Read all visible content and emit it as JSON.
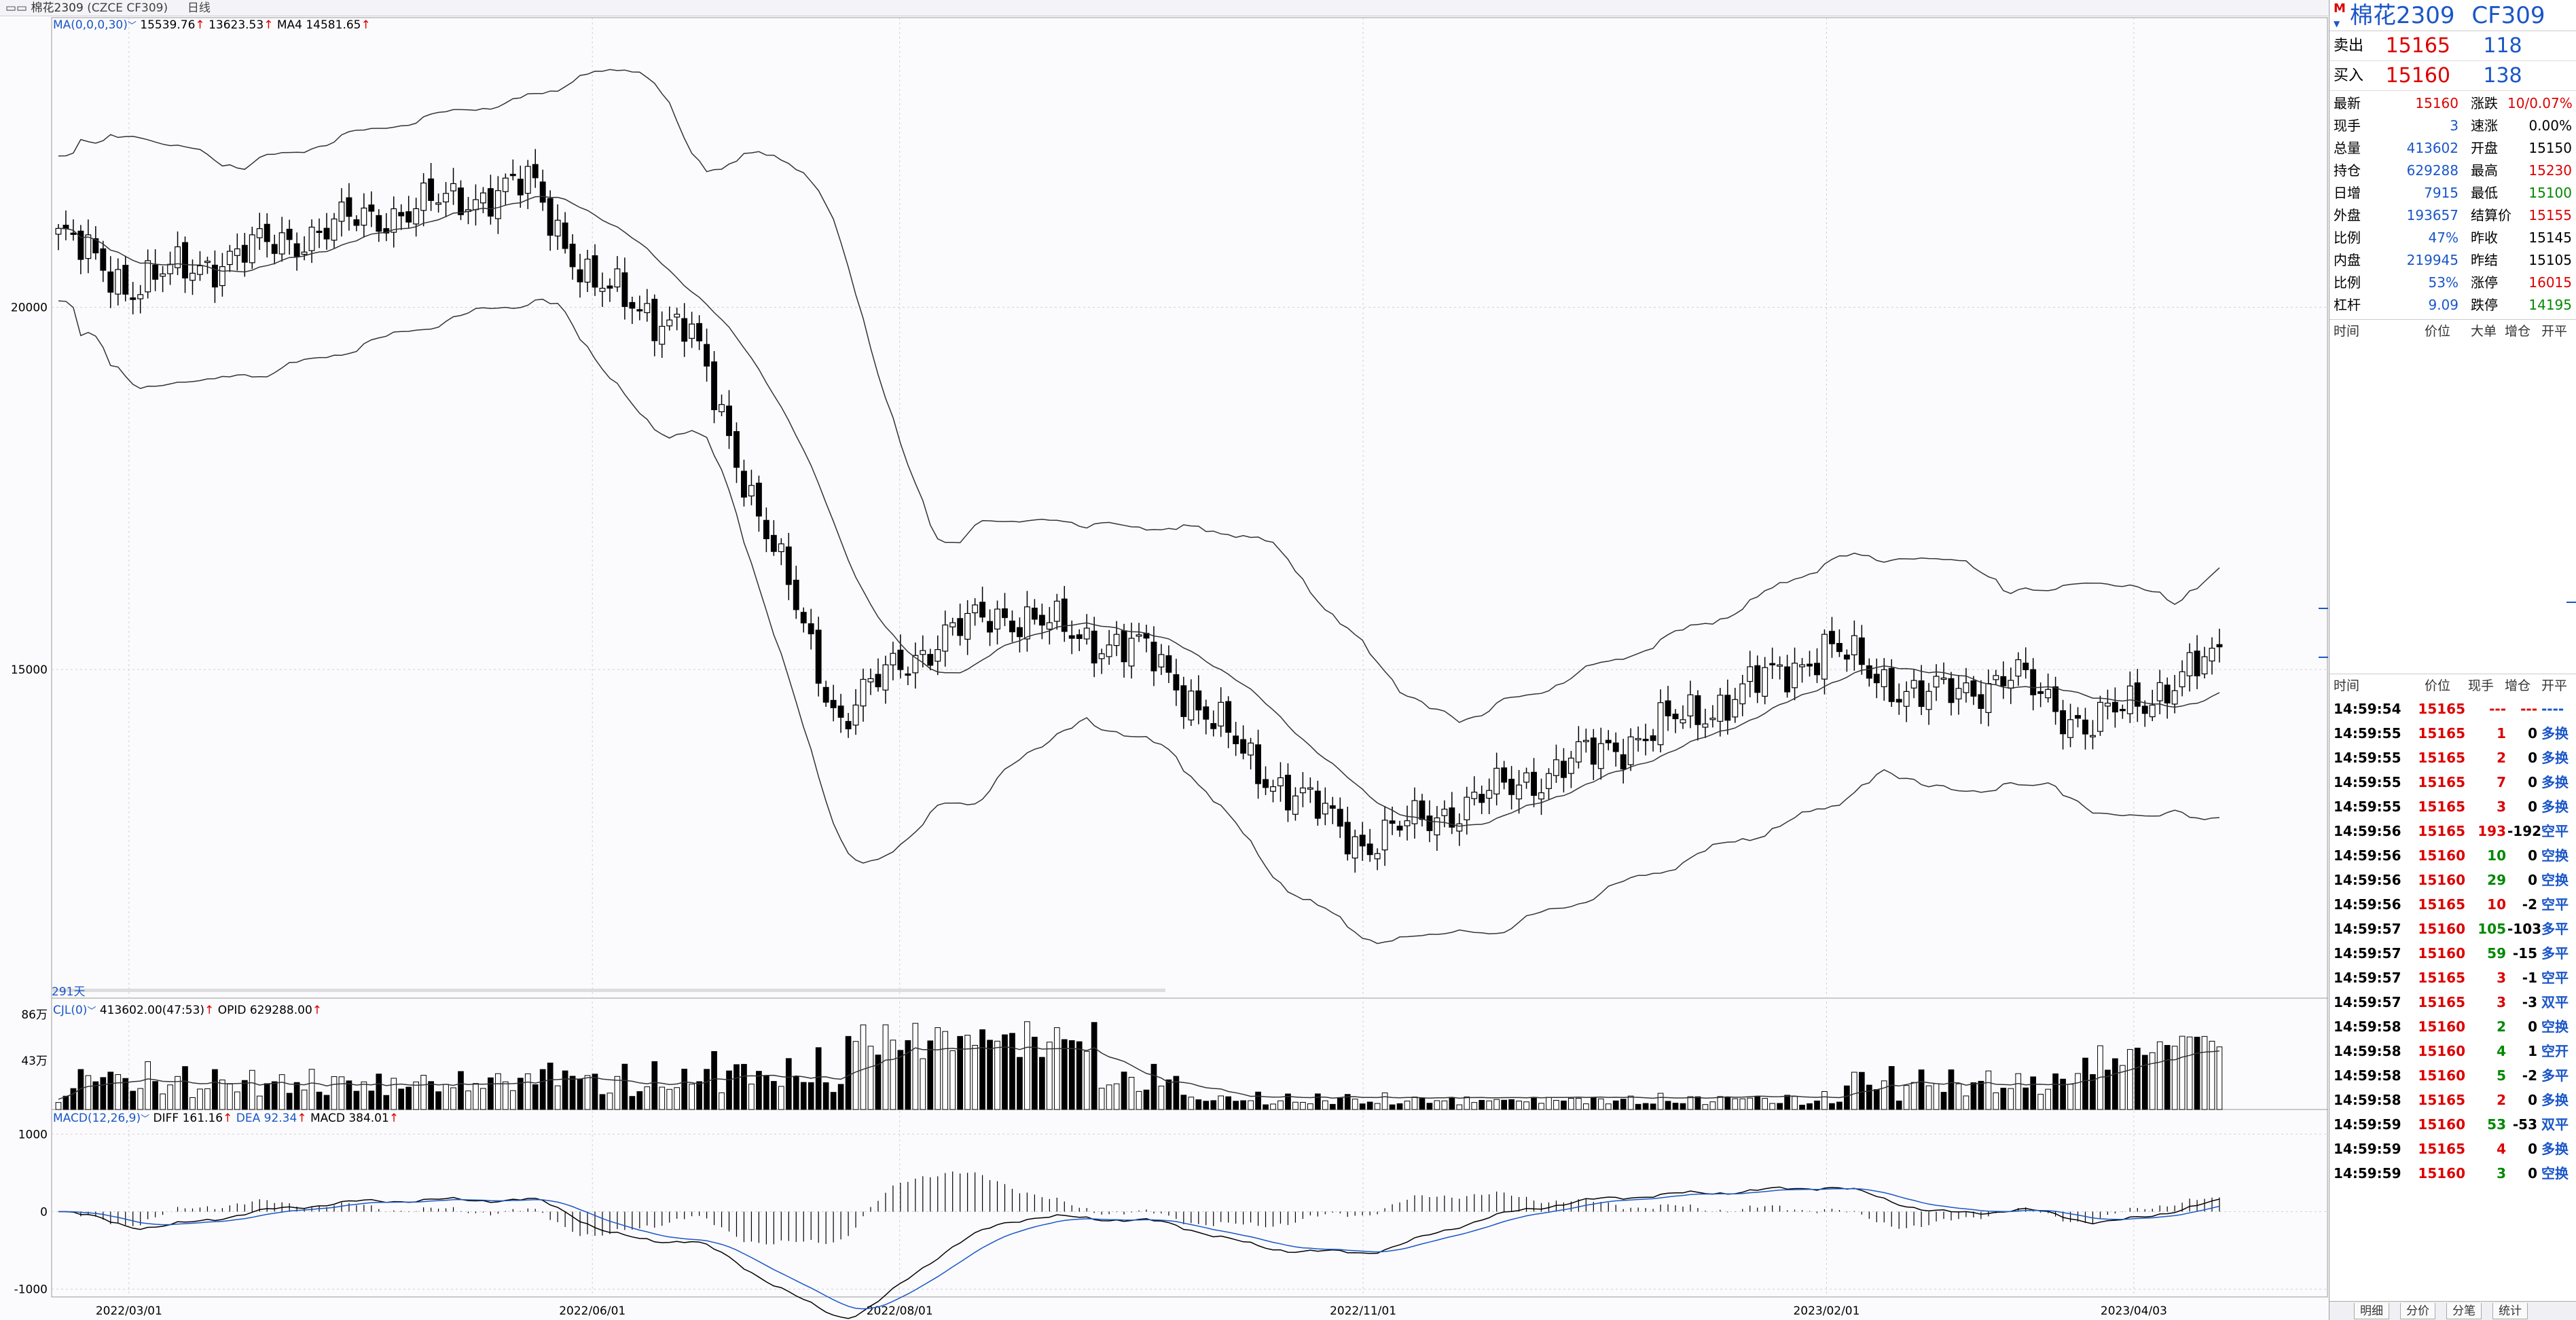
{
  "titlebar": {
    "symbol": "棉花2309",
    "code": "(CZCE CF309)",
    "period": "日线"
  },
  "main_legend": {
    "indicator": "MA(0,0,0,30)",
    "v1": "15539.76",
    "v2": "13623.53",
    "ma4": "MA4 14581.65",
    "days": "291天"
  },
  "volume_legend": {
    "indicator": "CJL(0)",
    "vol": "413602.00(47:53)",
    "opid": "OPID 629288.00",
    "ytick_top": "86万",
    "ytick_mid": "43万"
  },
  "macd_legend": {
    "indicator": "MACD(12,26,9)",
    "diff": "DIFF 161.16",
    "dea": "DEA 92.34",
    "macd": "MACD 384.01",
    "yticks": [
      "1000",
      "0",
      "-1000"
    ]
  },
  "price_yticks": [
    "20000",
    "15000"
  ],
  "dates": [
    "2022/03/01",
    "2022/06/01",
    "2022/08/01",
    "2022/11/01",
    "2023/02/01",
    "2023/04/03"
  ],
  "chart_data": {
    "type": "candlestick",
    "title": "棉花2309 (CZCE CF309) 日线",
    "price_range": [
      10500,
      24000
    ],
    "macd_range": [
      -1100,
      1300
    ],
    "x": [
      "2022/03/01",
      "2022/06/01",
      "2022/08/01",
      "2022/11/01",
      "2023/02/01",
      "2023/04/03"
    ],
    "close_keypoints": [
      {
        "date": "2022/02/15",
        "close": 21000
      },
      {
        "date": "2022/03/01",
        "close": 20300
      },
      {
        "date": "2022/04/15",
        "close": 21200
      },
      {
        "date": "2022/05/20",
        "close": 21700
      },
      {
        "date": "2022/06/01",
        "close": 20300
      },
      {
        "date": "2022/06/20",
        "close": 19700
      },
      {
        "date": "2022/07/05",
        "close": 17000
      },
      {
        "date": "2022/07/20",
        "close": 14300
      },
      {
        "date": "2022/08/01",
        "close": 15100
      },
      {
        "date": "2022/08/20",
        "close": 15800
      },
      {
        "date": "2022/09/20",
        "close": 15200
      },
      {
        "date": "2022/10/10",
        "close": 13700
      },
      {
        "date": "2022/11/01",
        "close": 12600
      },
      {
        "date": "2022/12/01",
        "close": 13400
      },
      {
        "date": "2023/01/10",
        "close": 14500
      },
      {
        "date": "2023/02/01",
        "close": 15300
      },
      {
        "date": "2023/02/20",
        "close": 14600
      },
      {
        "date": "2023/03/10",
        "close": 14900
      },
      {
        "date": "2023/03/25",
        "close": 14200
      },
      {
        "date": "2023/04/20",
        "close": 15160
      }
    ]
  },
  "quote": {
    "name": "棉花2309",
    "code": "CF309",
    "m": "M",
    "ask_label": "卖出",
    "ask_price": "15165",
    "ask_vol": "118",
    "bid_label": "买入",
    "bid_price": "15160",
    "bid_vol": "138",
    "stats": [
      {
        "k1": "最新",
        "v1": "15160",
        "c1": "red",
        "k2": "涨跌",
        "v2": "10/0.07%",
        "c2": "red"
      },
      {
        "k1": "现手",
        "v1": "3",
        "c1": "blue",
        "k2": "速涨",
        "v2": "0.00%",
        "c2": "blk"
      },
      {
        "k1": "总量",
        "v1": "413602",
        "c1": "blue",
        "k2": "开盘",
        "v2": "15150",
        "c2": "blk"
      },
      {
        "k1": "持仓",
        "v1": "629288",
        "c1": "blue",
        "k2": "最高",
        "v2": "15230",
        "c2": "red"
      },
      {
        "k1": "日增",
        "v1": "7915",
        "c1": "blue",
        "k2": "最低",
        "v2": "15100",
        "c2": "green"
      },
      {
        "k1": "外盘",
        "v1": "193657",
        "c1": "blue",
        "k2": "结算价",
        "v2": "15155",
        "c2": "red"
      },
      {
        "k1": "比例",
        "v1": "47%",
        "c1": "blue",
        "k2": "昨收",
        "v2": "15145",
        "c2": "blk"
      },
      {
        "k1": "内盘",
        "v1": "219945",
        "c1": "blue",
        "k2": "昨结",
        "v2": "15105",
        "c2": "blk"
      },
      {
        "k1": "比例",
        "v1": "53%",
        "c1": "blue",
        "k2": "涨停",
        "v2": "16015",
        "c2": "red"
      },
      {
        "k1": "杠杆",
        "v1": "9.09",
        "c1": "blue",
        "k2": "跌停",
        "v2": "14195",
        "c2": "green"
      }
    ],
    "big_header": {
      "time": "时间",
      "price": "价位",
      "big": "大单",
      "oi": "增仓",
      "kp": "开平"
    },
    "tick_header": {
      "time": "时间",
      "price": "价位",
      "vol": "现手",
      "oi": "增仓",
      "kp": "开平"
    },
    "ticks": [
      {
        "t": "14:59:54",
        "p": "15165",
        "v": "---",
        "o": "---",
        "k": "----",
        "pc": "red",
        "vc": "red",
        "oc": "red",
        "kc": "blue"
      },
      {
        "t": "14:59:55",
        "p": "15165",
        "v": "1",
        "o": "0",
        "k": "多换",
        "pc": "red",
        "vc": "red",
        "oc": "blk",
        "kc": "blue"
      },
      {
        "t": "14:59:55",
        "p": "15165",
        "v": "2",
        "o": "0",
        "k": "多换",
        "pc": "red",
        "vc": "red",
        "oc": "blk",
        "kc": "blue"
      },
      {
        "t": "14:59:55",
        "p": "15165",
        "v": "7",
        "o": "0",
        "k": "多换",
        "pc": "red",
        "vc": "red",
        "oc": "blk",
        "kc": "blue"
      },
      {
        "t": "14:59:55",
        "p": "15165",
        "v": "3",
        "o": "0",
        "k": "多换",
        "pc": "red",
        "vc": "red",
        "oc": "blk",
        "kc": "blue"
      },
      {
        "t": "14:59:56",
        "p": "15165",
        "v": "193",
        "o": "-192",
        "k": "空平",
        "pc": "red",
        "vc": "red",
        "oc": "blk",
        "kc": "blue"
      },
      {
        "t": "14:59:56",
        "p": "15160",
        "v": "10",
        "o": "0",
        "k": "空换",
        "pc": "red",
        "vc": "green",
        "oc": "blk",
        "kc": "blue"
      },
      {
        "t": "14:59:56",
        "p": "15160",
        "v": "29",
        "o": "0",
        "k": "空换",
        "pc": "red",
        "vc": "green",
        "oc": "blk",
        "kc": "blue"
      },
      {
        "t": "14:59:56",
        "p": "15165",
        "v": "10",
        "o": "-2",
        "k": "空平",
        "pc": "red",
        "vc": "red",
        "oc": "blk",
        "kc": "blue"
      },
      {
        "t": "14:59:57",
        "p": "15160",
        "v": "105",
        "o": "-103",
        "k": "多平",
        "pc": "red",
        "vc": "green",
        "oc": "blk",
        "kc": "blue"
      },
      {
        "t": "14:59:57",
        "p": "15160",
        "v": "59",
        "o": "-15",
        "k": "多平",
        "pc": "red",
        "vc": "green",
        "oc": "blk",
        "kc": "blue"
      },
      {
        "t": "14:59:57",
        "p": "15165",
        "v": "3",
        "o": "-1",
        "k": "空平",
        "pc": "red",
        "vc": "red",
        "oc": "blk",
        "kc": "blue"
      },
      {
        "t": "14:59:57",
        "p": "15165",
        "v": "3",
        "o": "-3",
        "k": "双平",
        "pc": "red",
        "vc": "red",
        "oc": "blk",
        "kc": "blue"
      },
      {
        "t": "14:59:58",
        "p": "15160",
        "v": "2",
        "o": "0",
        "k": "空换",
        "pc": "red",
        "vc": "green",
        "oc": "blk",
        "kc": "blue"
      },
      {
        "t": "14:59:58",
        "p": "15160",
        "v": "4",
        "o": "1",
        "k": "空开",
        "pc": "red",
        "vc": "green",
        "oc": "blk",
        "kc": "blue"
      },
      {
        "t": "14:59:58",
        "p": "15160",
        "v": "5",
        "o": "-2",
        "k": "多平",
        "pc": "red",
        "vc": "green",
        "oc": "blk",
        "kc": "blue"
      },
      {
        "t": "14:59:58",
        "p": "15165",
        "v": "2",
        "o": "0",
        "k": "多换",
        "pc": "red",
        "vc": "red",
        "oc": "blk",
        "kc": "blue"
      },
      {
        "t": "14:59:59",
        "p": "15160",
        "v": "53",
        "o": "-53",
        "k": "双平",
        "pc": "red",
        "vc": "green",
        "oc": "blk",
        "kc": "blue"
      },
      {
        "t": "14:59:59",
        "p": "15165",
        "v": "4",
        "o": "0",
        "k": "多换",
        "pc": "red",
        "vc": "red",
        "oc": "blk",
        "kc": "blue"
      },
      {
        "t": "14:59:59",
        "p": "15160",
        "v": "3",
        "o": "0",
        "k": "空换",
        "pc": "red",
        "vc": "green",
        "oc": "blk",
        "kc": "blue"
      }
    ],
    "tabs": [
      "明细",
      "分价",
      "分笔",
      "统计"
    ]
  }
}
